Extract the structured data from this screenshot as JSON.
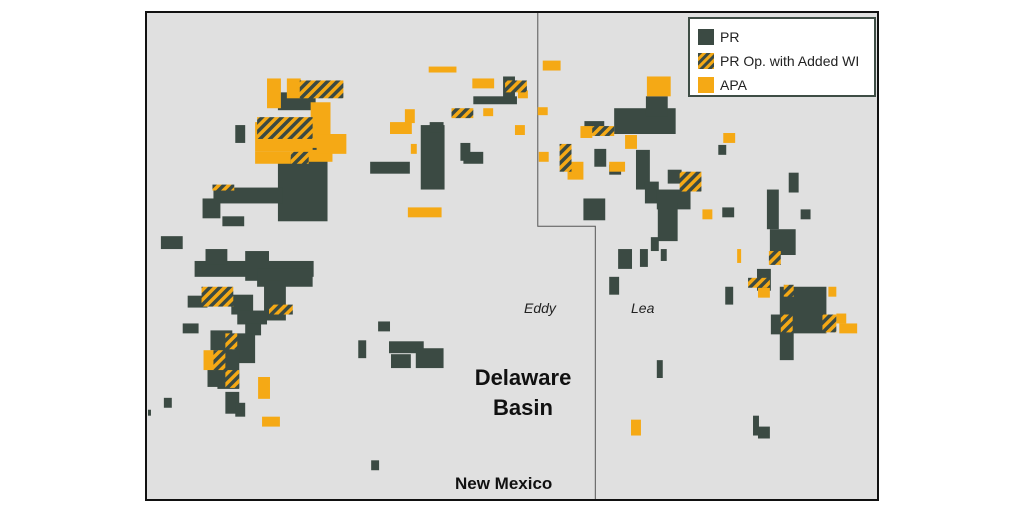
{
  "legend": {
    "items": [
      {
        "label": "PR",
        "swatch": "pr"
      },
      {
        "label": "PR Op. with Added WI",
        "swatch": "hatched"
      },
      {
        "label": "APA",
        "swatch": "apa"
      }
    ]
  },
  "labels": {
    "county_left": "Eddy",
    "county_right": "Lea",
    "basin_line1": "Delaware",
    "basin_line2": "Basin",
    "state": "New Mexico"
  },
  "colors": {
    "pr": "#3b4a43",
    "apa": "#f5a915",
    "background": "#e0e0e0",
    "border": "#111111",
    "county_line": "#555555"
  }
}
